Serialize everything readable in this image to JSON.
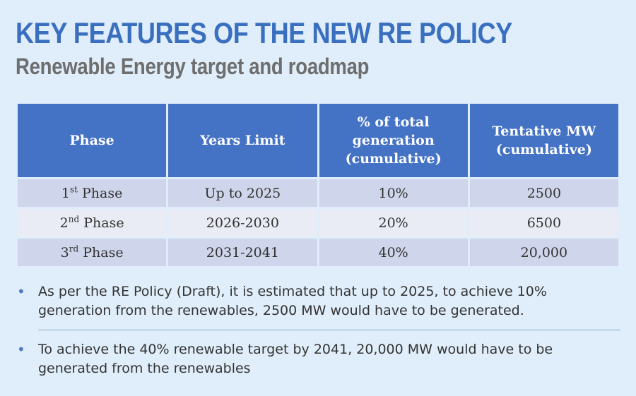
{
  "header": {
    "title": "KEY FEATURES OF THE NEW RE POLICY",
    "subtitle": "Renewable Energy target and roadmap"
  },
  "table": {
    "columns": [
      "Phase",
      "Years Limit",
      "% of total generation (cumulative)",
      "Tentative MW (cumulative)"
    ],
    "rows": [
      {
        "phase_num": "1",
        "phase_sup": "st",
        "phase_word": " Phase",
        "years": "Up to 2025",
        "percent": "10%",
        "mw": "2500"
      },
      {
        "phase_num": "2",
        "phase_sup": "nd",
        "phase_word": " Phase",
        "years": "2026-2030",
        "percent": "20%",
        "mw": "6500"
      },
      {
        "phase_num": "3",
        "phase_sup": "rd",
        "phase_word": " Phase",
        "years": "2031-2041",
        "percent": "40%",
        "mw": "20,000"
      }
    ]
  },
  "notes": [
    "As per the RE Policy (Draft), it is estimated that up to 2025, to achieve 10% generation from the renewables, 2500 MW would have to be generated.",
    "To achieve the 40% renewable target by 2041, 20,000 MW would have to be generated from the renewables"
  ],
  "colors": {
    "background": "#dfeefa",
    "title": "#3a6fc0",
    "subtitle": "#6e6e6e",
    "header_fill": "#4472c4",
    "row_dark": "#cfd5ea",
    "row_light": "#e9ebf5",
    "bullet": "#4a7bc4"
  }
}
